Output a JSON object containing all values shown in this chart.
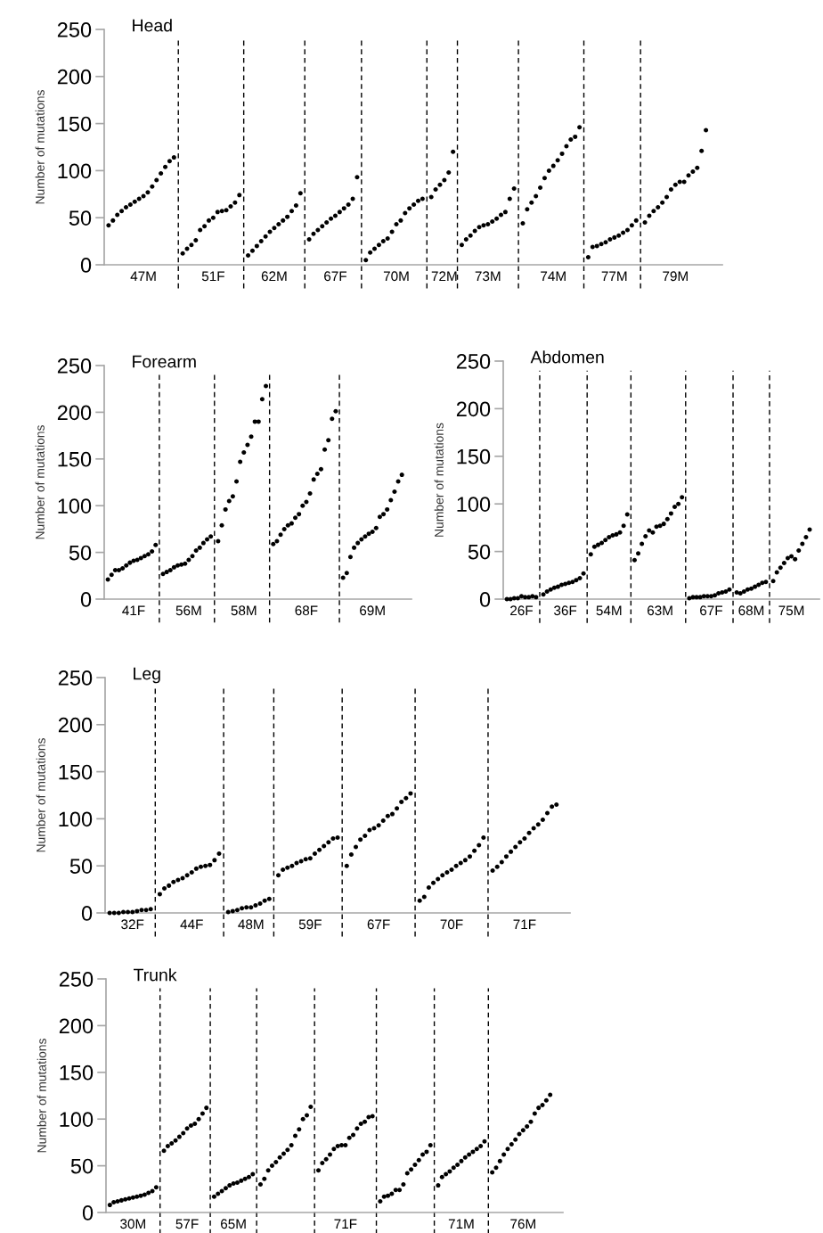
{
  "chart_data": [
    {
      "type": "scatter",
      "title": "Head",
      "ylabel": "Number of mutations",
      "marker": "circle",
      "grid": false,
      "ylim": [
        0,
        250
      ],
      "yticks": [
        0,
        50,
        100,
        150,
        200,
        250
      ],
      "categories": [
        null,
        null,
        null,
        null,
        null,
        null,
        null,
        null,
        "47M",
        null,
        null,
        null,
        null,
        null,
        null,
        null,
        null,
        null,
        null,
        null,
        null,
        null,
        null,
        null,
        "51F",
        null,
        null,
        null,
        null,
        null,
        null,
        null,
        null,
        null,
        null,
        null,
        null,
        null,
        "62M",
        null,
        null,
        null,
        null,
        null,
        null,
        null,
        null,
        null,
        null,
        null,
        null,
        null,
        "67F",
        null,
        null,
        null,
        null,
        null,
        null,
        null,
        null,
        null,
        null,
        null,
        null,
        null,
        "70M",
        null,
        null,
        null,
        null,
        null,
        null,
        null,
        null,
        null,
        null,
        "72M",
        null,
        null,
        null,
        null,
        null,
        null,
        null,
        null,
        null,
        "73M",
        null,
        null,
        null,
        null,
        null,
        null,
        null,
        null,
        null,
        null,
        null,
        null,
        null,
        null,
        "74M",
        null,
        null,
        null,
        null,
        null,
        null,
        null,
        null,
        null,
        null,
        null,
        null,
        null,
        "77M",
        null,
        null,
        null,
        null,
        null,
        null,
        null,
        null,
        null,
        null,
        null,
        null,
        null,
        "79M",
        null,
        null,
        null,
        null,
        null,
        null,
        null
      ],
      "series": [
        {
          "color": "#000000",
          "values": [
            42,
            47,
            53,
            57,
            61,
            64,
            67,
            70,
            73,
            77,
            83,
            90,
            97,
            104,
            110,
            114,
            null,
            12,
            17,
            21,
            26,
            37,
            41,
            47,
            50,
            56,
            57,
            58,
            62,
            66,
            74,
            null,
            10,
            15,
            20,
            25,
            30,
            35,
            39,
            43,
            47,
            51,
            57,
            63,
            76,
            null,
            27,
            33,
            37,
            41,
            45,
            49,
            52,
            56,
            60,
            64,
            70,
            93,
            null,
            5,
            13,
            17,
            21,
            25,
            28,
            35,
            43,
            47,
            55,
            60,
            64,
            68,
            70,
            null,
            72,
            80,
            85,
            90,
            98,
            120,
            null,
            21,
            27,
            31,
            36,
            40,
            42,
            43,
            46,
            49,
            53,
            56,
            70,
            81,
            null,
            44,
            59,
            66,
            73,
            82,
            92,
            100,
            105,
            111,
            118,
            126,
            133,
            136,
            146,
            null,
            8,
            19,
            20,
            22,
            24,
            27,
            29,
            31,
            34,
            37,
            42,
            47,
            null,
            45,
            52,
            57,
            61,
            66,
            72,
            80,
            85,
            88,
            88,
            95,
            99,
            103,
            121,
            143
          ]
        }
      ]
    },
    {
      "type": "scatter",
      "title": "Forearm",
      "ylabel": "Number of mutations",
      "marker": "circle",
      "grid": false,
      "ylim": [
        0,
        250
      ],
      "yticks": [
        0,
        50,
        100,
        150,
        200,
        250
      ],
      "categories": [
        null,
        null,
        null,
        null,
        null,
        null,
        null,
        "41F",
        null,
        null,
        null,
        null,
        null,
        null,
        null,
        null,
        null,
        null,
        null,
        null,
        null,
        null,
        "56M",
        null,
        null,
        null,
        null,
        null,
        null,
        null,
        null,
        null,
        null,
        null,
        null,
        null,
        null,
        "58M",
        null,
        null,
        null,
        null,
        null,
        null,
        null,
        null,
        null,
        null,
        null,
        null,
        null,
        null,
        null,
        null,
        "68F",
        null,
        null,
        null,
        null,
        null,
        null,
        null,
        null,
        null,
        null,
        null,
        null,
        null,
        null,
        null,
        null,
        null,
        "69M",
        null,
        null,
        null,
        null,
        null,
        null,
        null,
        null
      ],
      "series": [
        {
          "color": "#000000",
          "values": [
            21,
            26,
            31,
            31,
            33,
            36,
            39,
            41,
            42,
            44,
            46,
            48,
            51,
            58,
            null,
            27,
            29,
            31,
            34,
            36,
            37,
            38,
            42,
            46,
            52,
            55,
            60,
            64,
            67,
            null,
            62,
            79,
            96,
            105,
            110,
            126,
            147,
            157,
            165,
            174,
            190,
            190,
            214,
            228,
            null,
            59,
            62,
            69,
            75,
            79,
            81,
            87,
            91,
            100,
            104,
            113,
            128,
            134,
            139,
            160,
            170,
            193,
            201,
            null,
            23,
            28,
            45,
            55,
            60,
            64,
            67,
            70,
            72,
            76,
            88,
            91,
            96,
            106,
            115,
            126,
            133
          ]
        }
      ]
    },
    {
      "type": "scatter",
      "title": "Abdomen",
      "ylabel": "Number of mutations",
      "marker": "circle",
      "grid": false,
      "ylim": [
        0,
        250
      ],
      "yticks": [
        0,
        50,
        100,
        150,
        200,
        250
      ],
      "categories": [
        null,
        null,
        null,
        null,
        "26F",
        null,
        null,
        null,
        null,
        null,
        null,
        null,
        null,
        null,
        null,
        null,
        "36F",
        null,
        null,
        null,
        null,
        null,
        null,
        null,
        null,
        null,
        null,
        null,
        "54M",
        null,
        null,
        null,
        null,
        null,
        null,
        null,
        null,
        null,
        null,
        null,
        null,
        null,
        "63M",
        null,
        null,
        null,
        null,
        null,
        null,
        null,
        null,
        null,
        null,
        null,
        null,
        null,
        "67F",
        null,
        null,
        null,
        null,
        null,
        null,
        null,
        null,
        null,
        null,
        "68M",
        null,
        null,
        null,
        null,
        null,
        null,
        null,
        null,
        null,
        null,
        "75M",
        null,
        null,
        null,
        null,
        null
      ],
      "series": [
        {
          "color": "#000000",
          "values": [
            0,
            0,
            1,
            1,
            3,
            2,
            2,
            3,
            2,
            null,
            5,
            8,
            10,
            12,
            13,
            15,
            16,
            17,
            18,
            20,
            22,
            27,
            null,
            47,
            55,
            57,
            59,
            62,
            65,
            67,
            68,
            70,
            77,
            89,
            null,
            41,
            48,
            58,
            66,
            72,
            70,
            76,
            77,
            79,
            84,
            90,
            97,
            100,
            107,
            null,
            1,
            2,
            2,
            2,
            3,
            3,
            3,
            4,
            6,
            7,
            8,
            10,
            null,
            7,
            6,
            8,
            10,
            11,
            13,
            15,
            17,
            18,
            null,
            19,
            28,
            33,
            38,
            43,
            45,
            42,
            51,
            58,
            65,
            73
          ]
        }
      ]
    },
    {
      "type": "scatter",
      "title": "Leg",
      "ylabel": "Number of mutations",
      "marker": "circle",
      "grid": false,
      "ylim": [
        0,
        250
      ],
      "yticks": [
        0,
        50,
        100,
        150,
        200,
        250
      ],
      "categories": [
        null,
        null,
        null,
        null,
        null,
        "32F",
        null,
        null,
        null,
        null,
        null,
        null,
        null,
        null,
        null,
        null,
        null,
        null,
        "44F",
        null,
        null,
        null,
        null,
        null,
        null,
        null,
        null,
        null,
        null,
        null,
        null,
        "48M",
        null,
        null,
        null,
        null,
        null,
        null,
        null,
        null,
        null,
        null,
        null,
        null,
        "59F",
        null,
        null,
        null,
        null,
        null,
        null,
        null,
        null,
        null,
        null,
        null,
        null,
        null,
        null,
        "67F",
        null,
        null,
        null,
        null,
        null,
        null,
        null,
        null,
        null,
        null,
        null,
        null,
        null,
        null,
        null,
        "70F",
        null,
        null,
        null,
        null,
        null,
        null,
        null,
        null,
        null,
        null,
        null,
        null,
        null,
        null,
        null,
        "71F",
        null,
        null,
        null,
        null,
        null,
        null,
        null
      ],
      "series": [
        {
          "color": "#000000",
          "values": [
            0,
            0,
            0,
            1,
            1,
            1,
            2,
            3,
            3,
            4,
            null,
            20,
            26,
            29,
            33,
            35,
            37,
            40,
            43,
            47,
            49,
            50,
            51,
            56,
            63,
            null,
            1,
            2,
            3,
            5,
            6,
            6,
            8,
            10,
            13,
            15,
            null,
            40,
            46,
            48,
            50,
            53,
            55,
            57,
            58,
            63,
            67,
            71,
            75,
            79,
            80,
            null,
            50,
            62,
            70,
            78,
            82,
            88,
            90,
            93,
            98,
            103,
            105,
            111,
            118,
            122,
            127,
            null,
            13,
            17,
            27,
            32,
            36,
            40,
            43,
            46,
            50,
            53,
            56,
            60,
            66,
            72,
            80,
            null,
            45,
            49,
            54,
            60,
            65,
            70,
            75,
            79,
            85,
            90,
            94,
            99,
            106,
            113,
            115
          ]
        }
      ]
    },
    {
      "type": "scatter",
      "title": "Trunk",
      "ylabel": "Number of mutations",
      "marker": "circle",
      "grid": false,
      "ylim": [
        0,
        250
      ],
      "yticks": [
        0,
        50,
        100,
        150,
        200,
        250
      ],
      "categories": [
        null,
        null,
        null,
        null,
        null,
        null,
        "30M",
        null,
        null,
        null,
        null,
        null,
        null,
        null,
        null,
        null,
        null,
        null,
        null,
        null,
        "57F",
        null,
        null,
        null,
        null,
        null,
        null,
        null,
        null,
        null,
        null,
        null,
        "65M",
        null,
        null,
        null,
        null,
        null,
        null,
        null,
        null,
        null,
        null,
        null,
        null,
        null,
        null,
        null,
        null,
        null,
        null,
        null,
        null,
        null,
        null,
        null,
        null,
        null,
        null,
        null,
        null,
        "71F",
        null,
        null,
        null,
        null,
        null,
        null,
        null,
        null,
        null,
        null,
        null,
        null,
        null,
        null,
        null,
        null,
        null,
        null,
        null,
        null,
        null,
        null,
        null,
        null,
        null,
        null,
        null,
        null,
        null,
        "71M",
        null,
        null,
        null,
        null,
        null,
        null,
        null,
        null,
        null,
        null,
        null,
        null,
        null,
        null,
        null,
        "76M",
        null,
        null,
        null,
        null,
        null,
        null,
        null
      ],
      "series": [
        {
          "color": "#000000",
          "values": [
            8,
            11,
            12,
            13,
            14,
            15,
            16,
            17,
            18,
            19,
            21,
            23,
            27,
            null,
            66,
            71,
            74,
            77,
            81,
            85,
            90,
            93,
            95,
            100,
            106,
            112,
            null,
            17,
            20,
            23,
            26,
            29,
            31,
            32,
            34,
            36,
            38,
            41,
            null,
            30,
            36,
            45,
            50,
            54,
            59,
            63,
            67,
            72,
            82,
            89,
            100,
            104,
            113,
            null,
            45,
            53,
            57,
            62,
            68,
            71,
            72,
            72,
            80,
            83,
            90,
            95,
            97,
            102,
            103,
            null,
            12,
            17,
            18,
            20,
            24,
            24,
            30,
            42,
            46,
            51,
            56,
            62,
            65,
            72,
            null,
            29,
            38,
            41,
            44,
            48,
            51,
            55,
            59,
            62,
            65,
            68,
            71,
            76,
            null,
            43,
            48,
            55,
            62,
            68,
            73,
            78,
            84,
            88,
            92,
            97,
            106,
            112,
            115,
            120,
            126
          ]
        }
      ]
    }
  ]
}
